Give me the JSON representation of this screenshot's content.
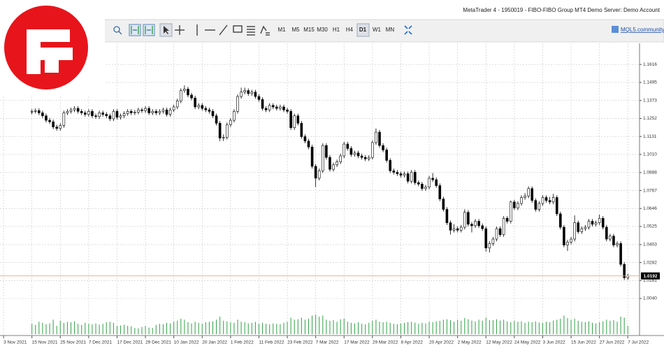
{
  "window_title": "MetaTrader 4 - 1950019 - FIBO-FIBO Group MT4 Demo Server: Demo Account",
  "toolbar": {
    "timeframes": [
      "M1",
      "M5",
      "M15",
      "M30",
      "H1",
      "H4",
      "D1",
      "W1",
      "MN"
    ],
    "active_timeframe": 6,
    "link": "MQL5.community"
  },
  "chart_data": {
    "type": "candlestick",
    "open": [
      1.1295,
      1.13,
      1.1305,
      1.129,
      1.127,
      1.124,
      1.123,
      1.1195,
      1.1185,
      1.1205,
      1.129,
      1.13,
      1.131,
      1.132,
      1.13,
      1.129,
      1.128,
      1.13,
      1.127,
      1.1265,
      1.129,
      1.128,
      1.127,
      1.125,
      1.13,
      1.126,
      1.127,
      1.1285,
      1.13,
      1.129,
      1.1295,
      1.131,
      1.1305,
      1.132,
      1.129,
      1.13,
      1.129,
      1.13,
      1.131,
      1.128,
      1.131,
      1.133,
      1.137,
      1.144,
      1.145,
      1.141,
      1.139,
      1.133,
      1.134,
      1.132,
      1.131,
      1.13,
      1.127,
      1.122,
      1.112,
      1.1125,
      1.121,
      1.124,
      1.13,
      1.14,
      1.143,
      1.144,
      1.142,
      1.143,
      1.14,
      1.138,
      1.132,
      1.131,
      1.134,
      1.133,
      1.132,
      1.133,
      1.131,
      1.13,
      1.119,
      1.127,
      1.122,
      1.113,
      1.11,
      1.106,
      1.093,
      1.085,
      1.09,
      1.107,
      1.099,
      1.091,
      1.094,
      1.096,
      1.1,
      1.108,
      1.105,
      1.101,
      1.102,
      1.1,
      1.099,
      1.098,
      1.099,
      1.109,
      1.116,
      1.107,
      1.104,
      1.097,
      1.09,
      1.089,
      1.088,
      1.087,
      1.088,
      1.083,
      1.089,
      1.082,
      1.081,
      1.078,
      1.079,
      1.085,
      1.084,
      1.08,
      1.071,
      1.064,
      1.055,
      1.05,
      1.051,
      1.05,
      1.052,
      1.062,
      1.054,
      1.053,
      1.056,
      1.053,
      1.051,
      1.038,
      1.041,
      1.044,
      1.051,
      1.047,
      1.058,
      1.056,
      1.069,
      1.065,
      1.068,
      1.072,
      1.073,
      1.078,
      1.07,
      1.064,
      1.068,
      1.072,
      1.07,
      1.069,
      1.072,
      1.061,
      1.052,
      1.04,
      1.042,
      1.044,
      1.055,
      1.049,
      1.051,
      1.052,
      1.056,
      1.054,
      1.055,
      1.058,
      1.052,
      1.044,
      1.046,
      1.04,
      1.041,
      1.027,
      1.018
    ],
    "high": [
      1.1315,
      1.132,
      1.132,
      1.1305,
      1.1285,
      1.1255,
      1.1245,
      1.121,
      1.122,
      1.1305,
      1.1315,
      1.1325,
      1.1335,
      1.1335,
      1.1315,
      1.1305,
      1.1315,
      1.1315,
      1.1285,
      1.1305,
      1.1305,
      1.1295,
      1.1285,
      1.1315,
      1.1315,
      1.1285,
      1.13,
      1.1315,
      1.1315,
      1.131,
      1.1325,
      1.1325,
      1.1335,
      1.1335,
      1.1315,
      1.1315,
      1.1315,
      1.1325,
      1.1325,
      1.1325,
      1.1345,
      1.1385,
      1.1455,
      1.1475,
      1.1465,
      1.1425,
      1.1405,
      1.1355,
      1.1355,
      1.1335,
      1.1325,
      1.1315,
      1.1285,
      1.1235,
      1.1145,
      1.1225,
      1.1255,
      1.1315,
      1.1415,
      1.146,
      1.146,
      1.1455,
      1.1445,
      1.1445,
      1.1415,
      1.1395,
      1.1335,
      1.1355,
      1.1355,
      1.1345,
      1.1345,
      1.1345,
      1.1325,
      1.1315,
      1.1285,
      1.1285,
      1.1235,
      1.1145,
      1.1115,
      1.1075,
      1.0945,
      1.0915,
      1.1085,
      1.1085,
      1.1005,
      1.0955,
      1.0975,
      1.1015,
      1.1095,
      1.1095,
      1.1065,
      1.1035,
      1.1035,
      1.1015,
      1.1005,
      1.1005,
      1.1105,
      1.1185,
      1.1175,
      1.1085,
      1.1055,
      1.0985,
      1.0915,
      1.0905,
      1.0895,
      1.0895,
      1.0895,
      1.0905,
      1.0905,
      1.0835,
      1.0825,
      1.0805,
      1.0865,
      1.0885,
      1.0855,
      1.0815,
      1.0725,
      1.0655,
      1.0565,
      1.054,
      1.0525,
      1.0535,
      1.064,
      1.0635,
      1.0555,
      1.0575,
      1.0575,
      1.0545,
      1.0525,
      1.0425,
      1.0455,
      1.0525,
      1.0525,
      1.0595,
      1.0595,
      1.07,
      1.0705,
      1.0695,
      1.0735,
      1.075,
      1.0795,
      1.0795,
      1.0715,
      1.0695,
      1.0735,
      1.0735,
      1.0725,
      1.0745,
      1.0735,
      1.0625,
      1.0535,
      1.0435,
      1.0455,
      1.06,
      1.0565,
      1.0525,
      1.0535,
      1.0575,
      1.0575,
      1.0565,
      1.0605,
      1.0595,
      1.0535,
      1.0475,
      1.0475,
      1.0425,
      1.0425,
      1.0285,
      1.0205
    ],
    "low": [
      1.128,
      1.1285,
      1.1275,
      1.1255,
      1.1225,
      1.1215,
      1.118,
      1.117,
      1.117,
      1.119,
      1.1275,
      1.1285,
      1.1295,
      1.1285,
      1.1275,
      1.1265,
      1.1265,
      1.1255,
      1.125,
      1.125,
      1.1265,
      1.1255,
      1.1235,
      1.1235,
      1.1245,
      1.1245,
      1.1255,
      1.127,
      1.1275,
      1.1275,
      1.128,
      1.129,
      1.129,
      1.1275,
      1.1275,
      1.1275,
      1.1275,
      1.1285,
      1.1265,
      1.1265,
      1.1295,
      1.1315,
      1.1355,
      1.1425,
      1.1395,
      1.1375,
      1.1315,
      1.1315,
      1.1305,
      1.1295,
      1.1285,
      1.1255,
      1.1205,
      1.11,
      1.11,
      1.111,
      1.1195,
      1.1225,
      1.1285,
      1.1385,
      1.1415,
      1.1405,
      1.1405,
      1.1385,
      1.1365,
      1.1305,
      1.1295,
      1.1295,
      1.1315,
      1.1305,
      1.1305,
      1.1295,
      1.1285,
      1.1175,
      1.1175,
      1.1205,
      1.1115,
      1.1085,
      1.1045,
      1.0915,
      1.079,
      1.0835,
      1.0885,
      1.0975,
      1.0895,
      1.0895,
      1.0925,
      1.0945,
      1.0985,
      1.1035,
      1.0995,
      1.0995,
      1.0985,
      1.0975,
      1.0965,
      1.0965,
      1.0975,
      1.1075,
      1.1055,
      1.1025,
      1.0955,
      1.0885,
      1.0875,
      1.0865,
      1.0855,
      1.0855,
      1.0815,
      1.0815,
      1.0805,
      1.0795,
      1.0765,
      1.0765,
      1.0775,
      1.0825,
      1.0785,
      1.0695,
      1.0625,
      1.0535,
      1.047,
      1.0485,
      1.0485,
      1.0485,
      1.0505,
      1.0525,
      1.0485,
      1.0515,
      1.0515,
      1.0495,
      1.0355,
      1.035,
      1.0395,
      1.0425,
      1.0455,
      1.0455,
      1.0545,
      1.0545,
      1.0635,
      1.0635,
      1.0665,
      1.0705,
      1.0715,
      1.0685,
      1.0625,
      1.0625,
      1.0665,
      1.0685,
      1.0675,
      1.0675,
      1.0595,
      1.0505,
      1.0385,
      1.036,
      1.0405,
      1.0425,
      1.0475,
      1.0475,
      1.0495,
      1.0505,
      1.0525,
      1.0525,
      1.0535,
      1.0505,
      1.0425,
      1.0425,
      1.0385,
      1.0385,
      1.0255,
      1.0165,
      1.0165
    ],
    "close": [
      1.13,
      1.1305,
      1.129,
      1.127,
      1.124,
      1.123,
      1.1195,
      1.1185,
      1.1205,
      1.129,
      1.13,
      1.131,
      1.132,
      1.13,
      1.129,
      1.128,
      1.13,
      1.127,
      1.1265,
      1.129,
      1.128,
      1.127,
      1.125,
      1.13,
      1.126,
      1.127,
      1.1285,
      1.13,
      1.129,
      1.1295,
      1.131,
      1.1305,
      1.132,
      1.129,
      1.13,
      1.129,
      1.13,
      1.131,
      1.128,
      1.131,
      1.133,
      1.137,
      1.144,
      1.145,
      1.141,
      1.139,
      1.133,
      1.134,
      1.132,
      1.131,
      1.13,
      1.127,
      1.122,
      1.112,
      1.1125,
      1.121,
      1.124,
      1.13,
      1.14,
      1.143,
      1.144,
      1.142,
      1.143,
      1.14,
      1.138,
      1.132,
      1.131,
      1.134,
      1.133,
      1.132,
      1.133,
      1.131,
      1.13,
      1.119,
      1.127,
      1.122,
      1.113,
      1.11,
      1.106,
      1.093,
      1.085,
      1.09,
      1.107,
      1.099,
      1.091,
      1.094,
      1.096,
      1.1,
      1.108,
      1.105,
      1.101,
      1.102,
      1.1,
      1.099,
      1.098,
      1.099,
      1.109,
      1.116,
      1.107,
      1.104,
      1.097,
      1.09,
      1.089,
      1.088,
      1.087,
      1.088,
      1.083,
      1.089,
      1.082,
      1.081,
      1.078,
      1.079,
      1.085,
      1.084,
      1.08,
      1.071,
      1.064,
      1.055,
      1.05,
      1.051,
      1.05,
      1.052,
      1.062,
      1.054,
      1.053,
      1.056,
      1.053,
      1.051,
      1.038,
      1.041,
      1.044,
      1.051,
      1.047,
      1.058,
      1.056,
      1.069,
      1.065,
      1.068,
      1.072,
      1.073,
      1.078,
      1.07,
      1.064,
      1.068,
      1.072,
      1.07,
      1.069,
      1.072,
      1.061,
      1.052,
      1.04,
      1.042,
      1.044,
      1.055,
      1.049,
      1.051,
      1.052,
      1.056,
      1.054,
      1.055,
      1.058,
      1.052,
      1.044,
      1.046,
      1.04,
      1.041,
      1.027,
      1.018,
      1.0192
    ],
    "volume": [
      50,
      45,
      60,
      55,
      48,
      52,
      70,
      40,
      65,
      55,
      60,
      58,
      62,
      50,
      45,
      55,
      50,
      48,
      52,
      46,
      50,
      58,
      60,
      55,
      40,
      42,
      45,
      40,
      38,
      30,
      28,
      35,
      40,
      32,
      30,
      45,
      50,
      48,
      55,
      52,
      60,
      65,
      75,
      70,
      58,
      52,
      60,
      55,
      50,
      58,
      60,
      62,
      70,
      85,
      65,
      62,
      58,
      55,
      70,
      60,
      58,
      52,
      55,
      60,
      50,
      55,
      50,
      48,
      52,
      50,
      48,
      55,
      60,
      80,
      70,
      72,
      80,
      70,
      75,
      90,
      95,
      85,
      90,
      70,
      65,
      68,
      60,
      72,
      75,
      60,
      55,
      52,
      58,
      50,
      48,
      55,
      65,
      70,
      60,
      58,
      60,
      55,
      50,
      48,
      52,
      55,
      58,
      60,
      56,
      50,
      55,
      52,
      60,
      58,
      62,
      65,
      70,
      72,
      68,
      60,
      70,
      65,
      78,
      72,
      66,
      62,
      70,
      65,
      80,
      68,
      68,
      72,
      66,
      70,
      62,
      58,
      65,
      60,
      62,
      55,
      60,
      58,
      62,
      56,
      55,
      60,
      58,
      66,
      70,
      75,
      90,
      78,
      70,
      75,
      65,
      60,
      58,
      62,
      55,
      52,
      58,
      62,
      70,
      65,
      68,
      60,
      85,
      80,
      40
    ],
    "up_color": "#ffffff",
    "down_color": "#000000",
    "volume_color": "#2ea043",
    "grid": true,
    "xlim": [
      -9,
      171.3
    ],
    "ylim": [
      0.98,
      1.1744
    ],
    "xticks": [
      {
        "value": -8,
        "label": "3 Nov 2021"
      },
      {
        "value": 0,
        "label": "15 Nov 2021"
      },
      {
        "value": 8,
        "label": "25 Nov 2021"
      },
      {
        "value": 16,
        "label": "7 Dec 2021"
      },
      {
        "value": 24,
        "label": "17 Dec 2021"
      },
      {
        "value": 32,
        "label": "29 Dec 2021"
      },
      {
        "value": 40,
        "label": "10 Jan 2022"
      },
      {
        "value": 48,
        "label": "20 Jan 2022"
      },
      {
        "value": 56,
        "label": "1 Feb 2022"
      },
      {
        "value": 64,
        "label": "11 Feb 2022"
      },
      {
        "value": 72,
        "label": "23 Feb 2022"
      },
      {
        "value": 80,
        "label": "7 Mar 2022"
      },
      {
        "value": 88,
        "label": "17 Mar 2022"
      },
      {
        "value": 96,
        "label": "29 Mar 2022"
      },
      {
        "value": 104,
        "label": "8 Apr 2022"
      },
      {
        "value": 112,
        "label": "20 Apr 2022"
      },
      {
        "value": 120,
        "label": "2 May 2022"
      },
      {
        "value": 128,
        "label": "12 May 2022"
      },
      {
        "value": 136,
        "label": "24 May 2022"
      },
      {
        "value": 144,
        "label": "3 Jun 2022"
      },
      {
        "value": 152,
        "label": "15 Jun 2022"
      },
      {
        "value": 160,
        "label": "27 Jun 2022"
      },
      {
        "value": 168,
        "label": "7 Jul 2022"
      }
    ],
    "yticks": [
      1.1616,
      1.1495,
      1.1373,
      1.1252,
      1.1131,
      {
        "value": 1.101,
        "label": "1.1010"
      },
      1.0888,
      1.0767,
      1.0646,
      1.0525,
      1.0403,
      1.0282,
      1.0161,
      {
        "value": 1.004,
        "label": "1.0040"
      }
    ],
    "last_price": 1.0192,
    "last_price_color": "#e8a586"
  }
}
